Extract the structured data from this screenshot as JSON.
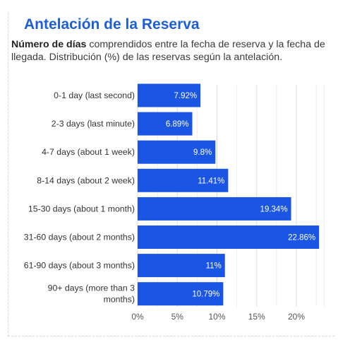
{
  "header": {
    "title": "Antelación de la Reserva",
    "subtitle_bold": "Número de días",
    "subtitle_rest": " comprendidos entre la fecha de reserva y la fecha de llegada. Distribución (%) de las reservas según la antelación."
  },
  "colors": {
    "title": "#1f5fd6",
    "bar": "#1a55e3",
    "grid": "#dddddd"
  },
  "chart_data": {
    "type": "bar",
    "orientation": "horizontal",
    "categories": [
      [
        "0-1 day (last second)"
      ],
      [
        "2-3 days (last minute)"
      ],
      [
        "4-7 days (about 1 week)"
      ],
      [
        "8-14 days (about 2 week)"
      ],
      [
        "15-30 days (about 1 month)"
      ],
      [
        "31-60 days (about 2 months)"
      ],
      [
        "61-90 days (about 3 months)"
      ],
      [
        "90+ days (more than 3",
        "months)"
      ]
    ],
    "values": [
      7.92,
      6.89,
      9.8,
      11.41,
      19.34,
      22.86,
      11,
      10.79
    ],
    "value_labels": [
      "7.92%",
      "6.89%",
      "9.8%",
      "11.41%",
      "19.34%",
      "22.86%",
      "11%",
      "10.79%"
    ],
    "xlim": [
      0,
      23.5
    ],
    "x_ticks": [
      0,
      5,
      10,
      15,
      20
    ],
    "x_tick_labels": [
      "0%",
      "5%",
      "10%",
      "15%",
      "20%"
    ],
    "grid": true
  }
}
